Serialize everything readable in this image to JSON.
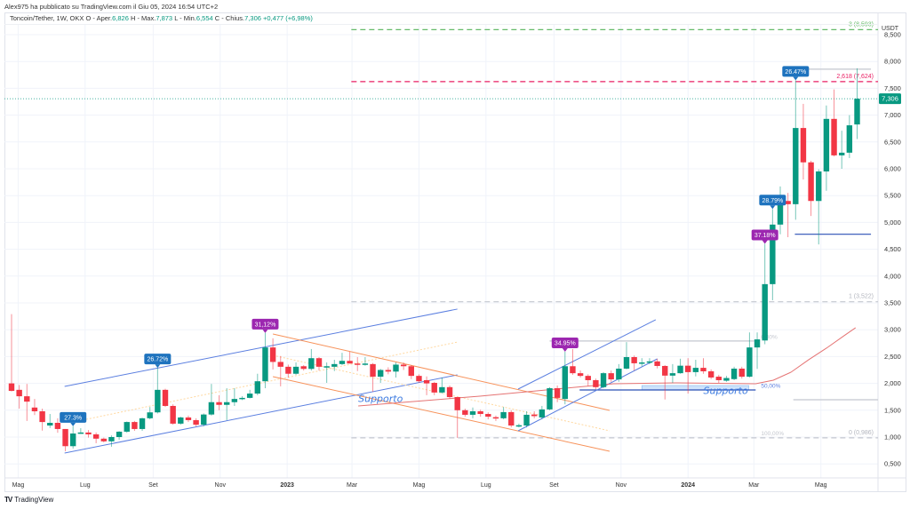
{
  "published": "Alex975 ha pubblicato su TradingView.com il Giu 05, 2024 16:54 UTC+2",
  "legend": {
    "symbol": "Toncoin/Tether, 1W, OKX",
    "open_label": "O - Aper.",
    "open": "6,826",
    "high_label": "H - Max.",
    "high": "7,873",
    "low_label": "L - Min.",
    "low": "6,554",
    "close_label": "C - Chius.",
    "close": "7,306",
    "change": "+0,477 (+6,98%)"
  },
  "axis_currency": "USDT",
  "last_price_label": "7,306",
  "footer": {
    "logo_glyph": "TV",
    "brand": "TradingView"
  },
  "colors": {
    "up": "#089981",
    "down": "#f23645",
    "blue_label": "#1e73be",
    "purple_label": "#9c27b0",
    "grid": "#f0f3fa"
  },
  "chart_data": {
    "type": "candlestick",
    "title": "Toncoin/Tether, 1W, OKX",
    "interval": "1W",
    "start_date": "2022-04-25",
    "ylabel": "USDT",
    "ylim": [
      130,
      8730
    ],
    "grid": true,
    "y_ticks": [
      "0,500",
      "1,000",
      "1,500",
      "2,000",
      "2,500",
      "3,000",
      "3,500",
      "4,000",
      "4,500",
      "5,000",
      "5,500",
      "6,000",
      "6,500",
      "7,000",
      "7,500",
      "8,000",
      "8,500"
    ],
    "y_tick_values": [
      500,
      1000,
      1500,
      2000,
      2500,
      3000,
      3500,
      4000,
      4500,
      5000,
      5500,
      6000,
      6500,
      7000,
      7500,
      8000,
      8500
    ],
    "x_ticks": [
      {
        "label": "Mag",
        "date": "2022-05-01"
      },
      {
        "label": "Lug",
        "date": "2022-07-01"
      },
      {
        "label": "Set",
        "date": "2022-09-01"
      },
      {
        "label": "Nov",
        "date": "2022-11-01"
      },
      {
        "label": "2023",
        "date": "2023-01-01",
        "year": true
      },
      {
        "label": "Mar",
        "date": "2023-03-01"
      },
      {
        "label": "Mag",
        "date": "2023-05-01"
      },
      {
        "label": "Lug",
        "date": "2023-07-01"
      },
      {
        "label": "Set",
        "date": "2023-09-01"
      },
      {
        "label": "Nov",
        "date": "2023-11-01"
      },
      {
        "label": "2024",
        "date": "2024-01-01",
        "year": true
      },
      {
        "label": "Mar",
        "date": "2024-03-01"
      },
      {
        "label": "Mag",
        "date": "2024-05-01"
      }
    ],
    "ohlc_format": [
      "open",
      "high",
      "low",
      "close"
    ],
    "candles": [
      [
        2000,
        3290,
        1850,
        1860
      ],
      [
        1880,
        1970,
        1530,
        1760
      ],
      [
        1760,
        1990,
        1300,
        1660
      ],
      [
        1550,
        1710,
        1410,
        1480
      ],
      [
        1480,
        1530,
        1120,
        1280
      ],
      [
        1215,
        1430,
        1170,
        1265
      ],
      [
        1265,
        1350,
        1080,
        1150
      ],
      [
        1150,
        1150,
        735,
        830
      ],
      [
        830,
        1200,
        785,
        1066
      ],
      [
        1066,
        1165,
        1060,
        1085
      ],
      [
        1085,
        1130,
        990,
        1050
      ],
      [
        1050,
        1085,
        885,
        970
      ],
      [
        970,
        990,
        900,
        920
      ],
      [
        920,
        1030,
        820,
        1000
      ],
      [
        1000,
        1110,
        950,
        1100
      ],
      [
        1100,
        1290,
        1080,
        1280
      ],
      [
        1280,
        1300,
        1115,
        1150
      ],
      [
        1150,
        1360,
        1115,
        1350
      ],
      [
        1350,
        1560,
        1330,
        1460
      ],
      [
        1460,
        2290,
        1440,
        1880
      ],
      [
        1880,
        1900,
        1560,
        1580
      ],
      [
        1580,
        1610,
        1230,
        1250
      ],
      [
        1250,
        1380,
        1230,
        1365
      ],
      [
        1365,
        1400,
        1280,
        1315
      ],
      [
        1315,
        1350,
        1200,
        1230
      ],
      [
        1230,
        1440,
        1200,
        1420
      ],
      [
        1420,
        1990,
        1400,
        1650
      ],
      [
        1650,
        1780,
        1500,
        1600
      ],
      [
        1600,
        1910,
        1315,
        1650
      ],
      [
        1650,
        1910,
        1580,
        1710
      ],
      [
        1710,
        1760,
        1690,
        1730
      ],
      [
        1730,
        1880,
        1720,
        1810
      ],
      [
        1810,
        2180,
        1780,
        2040
      ],
      [
        2040,
        2940,
        1910,
        2670
      ],
      [
        2670,
        2840,
        2260,
        2400
      ],
      [
        2400,
        2510,
        1945,
        2310
      ],
      [
        2310,
        2350,
        2110,
        2180
      ],
      [
        2180,
        2390,
        2160,
        2310
      ],
      [
        2320,
        2340,
        2240,
        2270
      ],
      [
        2270,
        2640,
        2240,
        2470
      ],
      [
        2470,
        2490,
        2240,
        2310
      ],
      [
        2300,
        2390,
        2010,
        2320
      ],
      [
        2310,
        2440,
        2230,
        2360
      ],
      [
        2360,
        2570,
        2340,
        2420
      ],
      [
        2420,
        2590,
        2380,
        2370
      ],
      [
        2370,
        2490,
        2230,
        2350
      ],
      [
        2350,
        2490,
        2330,
        2370
      ],
      [
        2360,
        2380,
        1845,
        2125
      ],
      [
        2125,
        2270,
        2010,
        2250
      ],
      [
        2250,
        2300,
        2170,
        2220
      ],
      [
        2220,
        2390,
        2110,
        2350
      ],
      [
        2350,
        2390,
        2250,
        2320
      ],
      [
        2320,
        2340,
        2080,
        2140
      ],
      [
        2140,
        2170,
        2010,
        2040
      ],
      [
        2060,
        2130,
        1780,
        2000
      ],
      [
        2010,
        2030,
        1780,
        1830
      ],
      [
        1830,
        2110,
        1810,
        1930
      ],
      [
        1930,
        1960,
        1715,
        1745
      ],
      [
        1745,
        1745,
        985,
        1500
      ],
      [
        1500,
        1530,
        1380,
        1415
      ],
      [
        1415,
        1550,
        1350,
        1480
      ],
      [
        1480,
        1510,
        1380,
        1430
      ],
      [
        1430,
        1460,
        1330,
        1380
      ],
      [
        1370,
        1400,
        1300,
        1350
      ],
      [
        1350,
        1560,
        1330,
        1465
      ],
      [
        1465,
        1500,
        1180,
        1215
      ],
      [
        1200,
        1250,
        1180,
        1220
      ],
      [
        1215,
        1480,
        1180,
        1415
      ],
      [
        1420,
        1480,
        1350,
        1390
      ],
      [
        1365,
        1580,
        1330,
        1515
      ],
      [
        1515,
        1930,
        1500,
        1910
      ],
      [
        1910,
        1960,
        1650,
        1730
      ],
      [
        1710,
        2590,
        1610,
        2320
      ],
      [
        2320,
        2640,
        2160,
        2190
      ],
      [
        2190,
        2240,
        2110,
        2140
      ],
      [
        2140,
        2170,
        1950,
        2060
      ],
      [
        2060,
        2090,
        1890,
        1930
      ],
      [
        1930,
        2210,
        1910,
        2190
      ],
      [
        2190,
        2240,
        2030,
        2075
      ],
      [
        2075,
        2360,
        2030,
        2275
      ],
      [
        2275,
        2770,
        2260,
        2490
      ],
      [
        2490,
        2520,
        2240,
        2375
      ],
      [
        2370,
        2470,
        2320,
        2390
      ],
      [
        2400,
        2470,
        2360,
        2410
      ],
      [
        2410,
        2460,
        2280,
        2325
      ],
      [
        2325,
        2340,
        1700,
        2145
      ],
      [
        2145,
        2360,
        2010,
        2190
      ],
      [
        2190,
        2460,
        2180,
        2330
      ],
      [
        2330,
        2470,
        1810,
        2210
      ],
      [
        2210,
        2440,
        2130,
        2290
      ],
      [
        2290,
        2470,
        2180,
        2225
      ],
      [
        2225,
        2260,
        2080,
        2110
      ],
      [
        2125,
        2160,
        2010,
        2060
      ],
      [
        2050,
        2140,
        2030,
        2100
      ],
      [
        2080,
        2310,
        2060,
        2275
      ],
      [
        2275,
        2310,
        2090,
        2125
      ],
      [
        2125,
        2950,
        2110,
        2670
      ],
      [
        2670,
        2950,
        2270,
        2820
      ],
      [
        2800,
        4600,
        2730,
        3850
      ],
      [
        3850,
        5250,
        3550,
        4960
      ],
      [
        4960,
        5670,
        4780,
        5400
      ],
      [
        5400,
        5550,
        4725,
        5340
      ],
      [
        5340,
        7650,
        5050,
        6760
      ],
      [
        6760,
        7210,
        5800,
        6120
      ],
      [
        6120,
        6150,
        5120,
        5400
      ],
      [
        5400,
        5990,
        4590,
        5950
      ],
      [
        5950,
        7180,
        5590,
        6930
      ],
      [
        6930,
        7480,
        6230,
        6250
      ],
      [
        6250,
        6710,
        6000,
        6300
      ],
      [
        6300,
        7000,
        6200,
        6810
      ],
      [
        6826,
        7873,
        6554,
        7306
      ]
    ],
    "last_price": 7306,
    "moving_average": [
      [
        45.1,
        1580
      ],
      [
        60.9,
        1762
      ],
      [
        78.3,
        1994
      ],
      [
        86.4,
        2010
      ],
      [
        96.8,
        1994
      ],
      [
        99.1,
        2060
      ],
      [
        101.4,
        2209
      ],
      [
        103.7,
        2441
      ],
      [
        106,
        2656
      ],
      [
        108.3,
        2888
      ],
      [
        109.8,
        3037
      ]
    ],
    "callouts": [
      {
        "candle": 8,
        "text": "27.3%",
        "color": "blue"
      },
      {
        "candle": 19,
        "text": "26.72%",
        "color": "blue"
      },
      {
        "candle": 33,
        "text": "31,12%",
        "color": "purple"
      },
      {
        "candle": 72,
        "text": "34.95%",
        "color": "purple"
      },
      {
        "candle": 98,
        "text": "37.18%",
        "color": "purple"
      },
      {
        "candle": 99,
        "text": "28.79%",
        "color": "blue"
      },
      {
        "candle": 102,
        "text": "26.47%",
        "color": "blue"
      }
    ],
    "trendlines": [
      {
        "name": "channel-2022-upper",
        "color": "#5b7fe0",
        "points": [
          [
            6.9,
            1944
          ],
          [
            58,
            3385
          ]
        ]
      },
      {
        "name": "channel-2022-lower",
        "color": "#5b7fe0",
        "points": [
          [
            6.9,
            702
          ],
          [
            58,
            2159
          ]
        ]
      },
      {
        "name": "channel-2022-mid",
        "color": "#ffd8a0",
        "dashed": true,
        "points": [
          [
            9.7,
            1330
          ],
          [
            58,
            2770
          ]
        ]
      },
      {
        "name": "channel-down-upper",
        "color": "#f7925a",
        "points": [
          [
            34,
            2921
          ],
          [
            77.8,
            1497
          ]
        ]
      },
      {
        "name": "channel-down-lower",
        "color": "#f7925a",
        "points": [
          [
            34,
            2126
          ],
          [
            77.8,
            735
          ]
        ]
      },
      {
        "name": "channel-down-mid",
        "color": "#ffd8a0",
        "dashed": true,
        "points": [
          [
            34,
            2524
          ],
          [
            77.8,
            1116
          ]
        ]
      },
      {
        "name": "channel-2023-upper",
        "color": "#5b7fe0",
        "points": [
          [
            65.9,
            1894
          ],
          [
            83.8,
            3186
          ]
        ]
      },
      {
        "name": "channel-2023-lower",
        "color": "#5b7fe0",
        "points": [
          [
            65.9,
            1116
          ],
          [
            84,
            2457
          ]
        ]
      }
    ],
    "levels": [
      {
        "name": "fib-ext-3",
        "price": 8593,
        "from": 44.2,
        "color": "#66bb6a",
        "dashed": true,
        "label": "3 (8,593)"
      },
      {
        "name": "fib-ext-2618",
        "price": 7624,
        "from": 44.2,
        "color": "#e91e63",
        "dashed": true,
        "label": "2,618 (7,624)"
      },
      {
        "name": "fib-ext-1",
        "price": 3522,
        "from": 44.2,
        "color": "#c4c7cf",
        "dashed": true,
        "label": "1 (3,522)"
      },
      {
        "name": "fib-ext-0",
        "price": 986,
        "from": 44.2,
        "color": "#c4c7cf",
        "dashed": true,
        "label": "0 (0,986)"
      },
      {
        "name": "high-line",
        "price": 7856,
        "from": 103.7,
        "to": 111.8,
        "color": "#c4c7cf"
      },
      {
        "name": "retrace-top-line",
        "price": 2790,
        "from": 70,
        "to": 96.8,
        "color": "#c4c7cf"
      },
      {
        "name": "support-line",
        "price": 1878,
        "from": 73.9,
        "to": 96.8,
        "color": "#2a4fb5"
      },
      {
        "name": "support-blue-2024",
        "price": 4780,
        "from": 101.9,
        "to": 111.8,
        "color": "#2a4fb5"
      },
      {
        "name": "gray-low-line",
        "price": 1695,
        "from": 101.7,
        "color": "#c4c7cf"
      }
    ],
    "support_zone": {
      "from": 82,
      "to": 95.9,
      "low": 1878,
      "high": 1960
    },
    "retracement_labels": [
      {
        "text": "0,00%",
        "price": 2830,
        "at": 97.5
      },
      {
        "text": "50,00%",
        "price": 1920,
        "at": 97.5
      },
      {
        "text": "100,00%",
        "price": 1030,
        "at": 97.5
      }
    ],
    "text_annotations": [
      {
        "text": "Supporto",
        "week": 45.1,
        "price": 1650
      },
      {
        "text": "Supporto",
        "week": 90,
        "price": 1800
      }
    ]
  }
}
